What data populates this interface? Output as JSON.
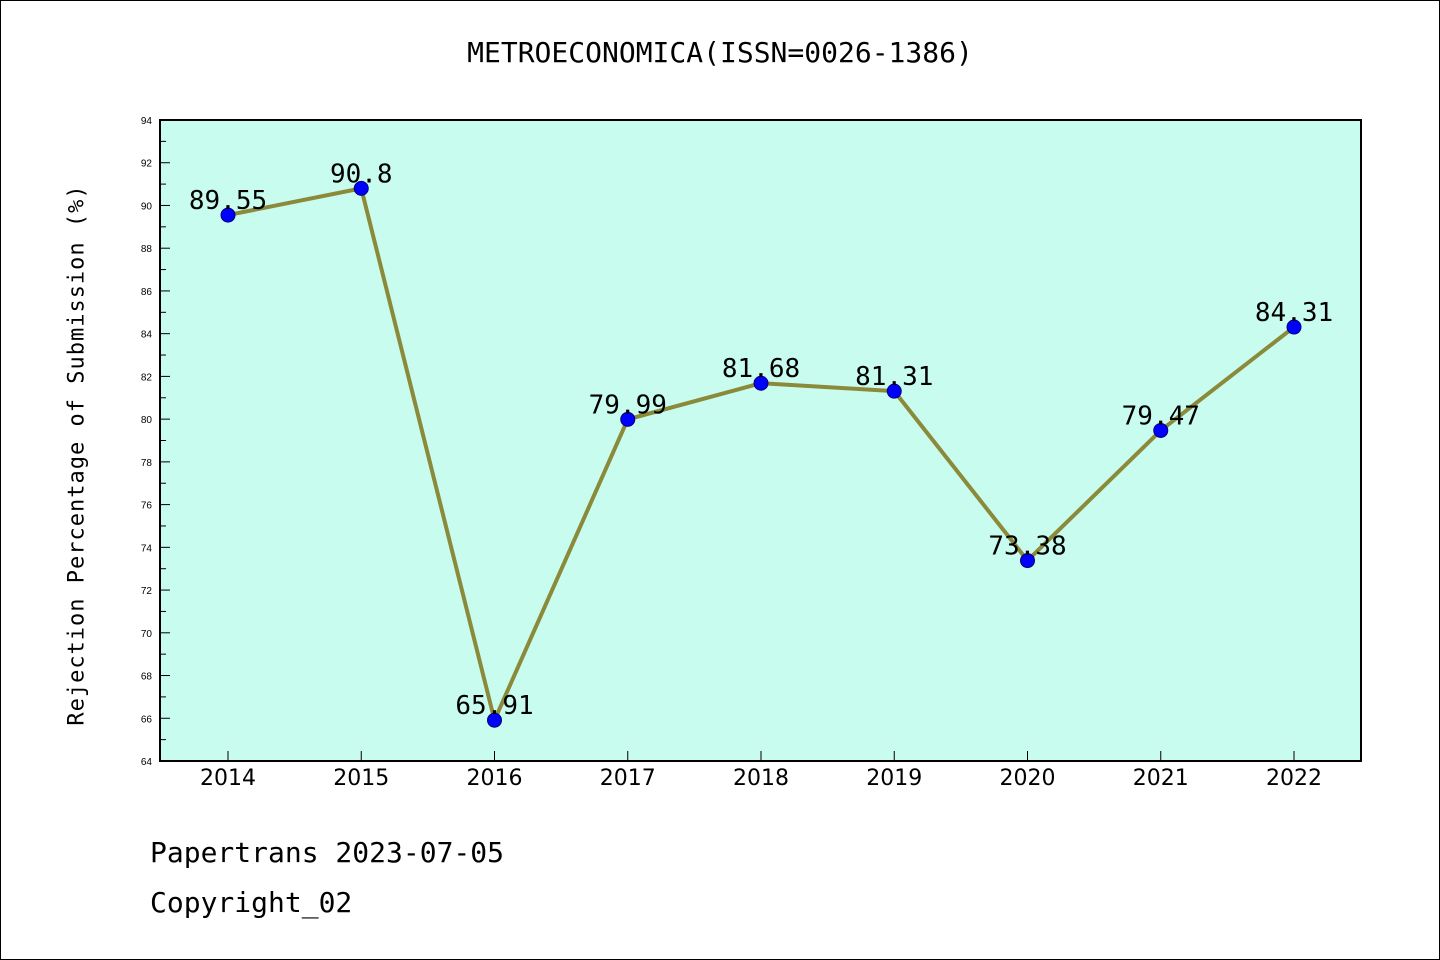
{
  "chart_data": {
    "type": "line",
    "title": "METROECONOMICA(ISSN=0026-1386)",
    "ylabel": "Rejection Percentage of Submission (%)",
    "xlabel": "",
    "x": [
      "2014",
      "2015",
      "2016",
      "2017",
      "2018",
      "2019",
      "2020",
      "2021",
      "2022"
    ],
    "series": [
      {
        "values": [
          89.55,
          90.8,
          65.91,
          79.99,
          81.68,
          81.31,
          73.38,
          79.47,
          84.31
        ],
        "labels": [
          "89.55",
          "90.8",
          "65.91",
          "79.99",
          "81.68",
          "81.31",
          "73.38",
          "79.47",
          "84.31"
        ],
        "line_color": "#8b8a3a",
        "marker_color": "#0000ff"
      }
    ],
    "ylim": [
      64,
      94
    ],
    "yticks": [
      64,
      66,
      68,
      70,
      72,
      74,
      76,
      78,
      80,
      82,
      84,
      86,
      88,
      90,
      92,
      94
    ],
    "plot_background": "#c8fcee",
    "grid": false,
    "legend": "none"
  },
  "footer": {
    "date": "Papertrans 2023-07-05",
    "copyright": "Copyright_02"
  }
}
